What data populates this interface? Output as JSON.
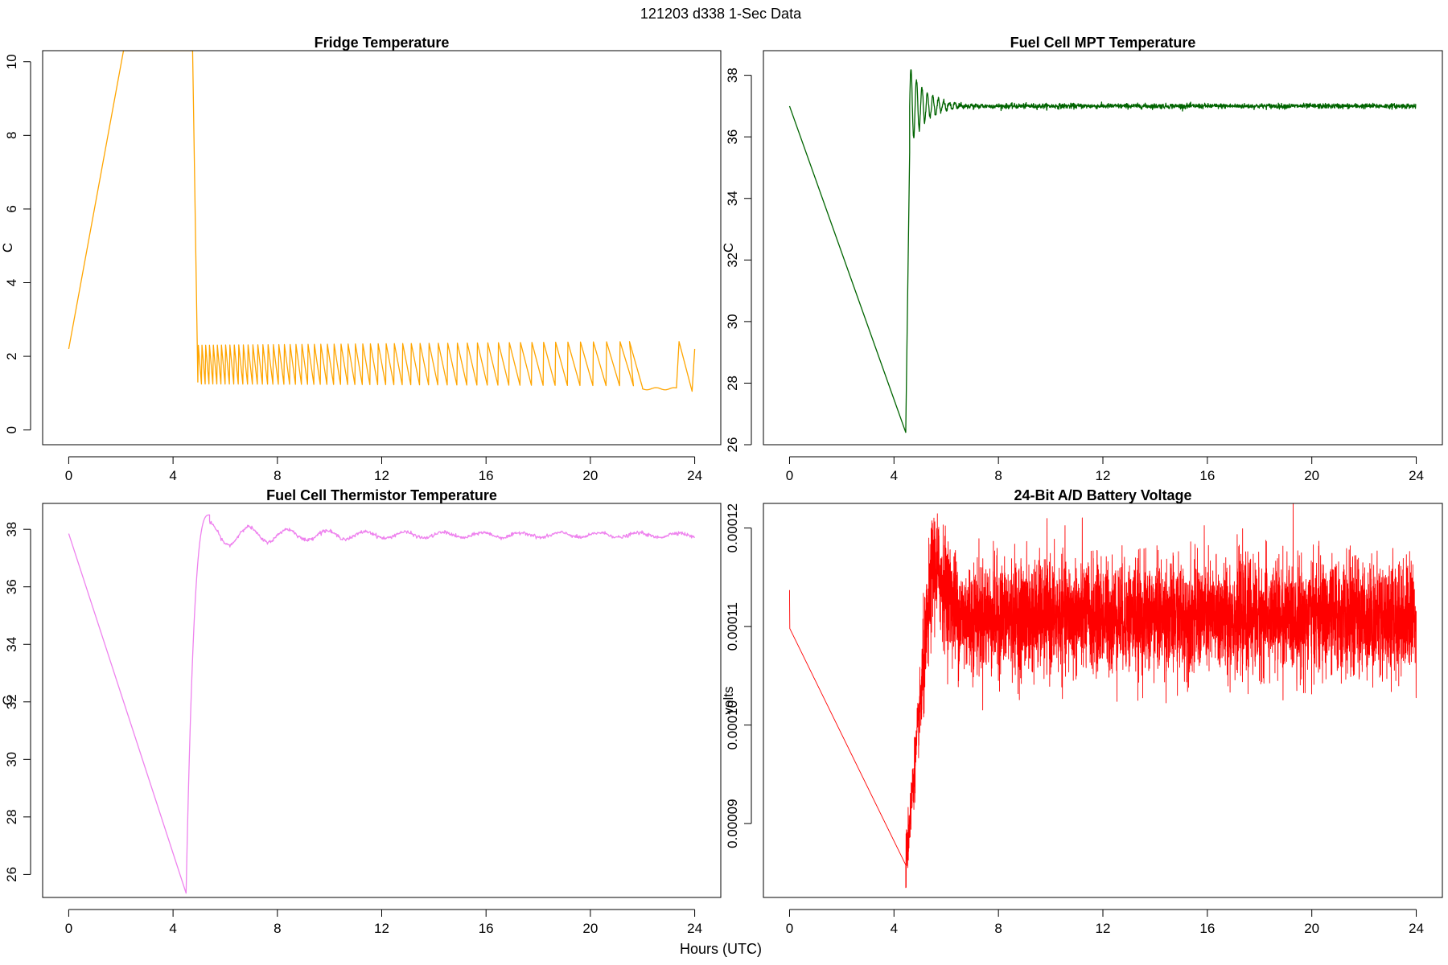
{
  "header": {
    "title": "121203   d338   1-Sec Data",
    "xlabel": "Hours (UTC)"
  },
  "chart_data": [
    {
      "type": "line",
      "title": "Fridge Temperature",
      "xlabel": "Hours (UTC)",
      "ylabel": "C",
      "color": "#FFA500",
      "xlim": [
        -1,
        25
      ],
      "ylim": [
        -0.4,
        10.3
      ],
      "xticks": [
        0,
        4,
        8,
        12,
        16,
        20,
        24
      ],
      "yticks": [
        0,
        2,
        4,
        6,
        8,
        10
      ],
      "ytick_labels": [
        "0",
        "2",
        "4",
        "6",
        "8",
        "10"
      ],
      "series": [
        {
          "name": "Fridge Temperature",
          "x": [
            0,
            2.1,
            4.75,
            4.95,
            5.0,
            21.5,
            22.0,
            23.4,
            23.45,
            23.9,
            24.0
          ],
          "y": [
            2.2,
            10.3,
            10.3,
            1.3,
            2.3,
            2.4,
            1.1,
            1.05,
            2.4,
            1.05,
            2.2
          ]
        }
      ],
      "notes": "sawtooth cycling between ~1.2 and ~2.3 C from hour 5 to 21.5, period lengthening"
    },
    {
      "type": "line",
      "title": "Fuel Cell MPT Temperature",
      "xlabel": "Hours (UTC)",
      "ylabel": "C",
      "color": "#006400",
      "xlim": [
        -1,
        25
      ],
      "ylim": [
        26,
        38.8
      ],
      "xticks": [
        0,
        4,
        8,
        12,
        16,
        20,
        24
      ],
      "yticks": [
        26,
        28,
        30,
        32,
        34,
        36,
        38
      ],
      "ytick_labels": [
        "26",
        "28",
        "30",
        "32",
        "34",
        "36",
        "38"
      ],
      "series": [
        {
          "name": "Fuel Cell MPT Temperature",
          "x": [
            0,
            4.45,
            4.65,
            4.7,
            5.0,
            5.5,
            6.0,
            6.5,
            24.0
          ],
          "y": [
            37.0,
            26.4,
            36.0,
            38.3,
            36.8,
            37.3,
            36.9,
            37.0,
            37.0
          ]
        }
      ]
    },
    {
      "type": "line",
      "title": "Fuel Cell Thermistor Temperature",
      "xlabel": "Hours (UTC)",
      "ylabel": "C",
      "color": "#EE82EE",
      "xlim": [
        -1,
        25
      ],
      "ylim": [
        25.2,
        38.9
      ],
      "xticks": [
        0,
        4,
        8,
        12,
        16,
        20,
        24
      ],
      "yticks": [
        26,
        28,
        30,
        32,
        34,
        36,
        38
      ],
      "ytick_labels": [
        "26",
        "28",
        "30",
        "32",
        "34",
        "36",
        "38"
      ],
      "series": [
        {
          "name": "Fuel Cell Thermistor Temperature",
          "x": [
            0,
            4.5,
            5.0,
            5.4,
            6.0,
            7.0,
            8.0,
            10.0,
            24.0
          ],
          "y": [
            37.85,
            25.35,
            37.5,
            38.5,
            37.7,
            37.95,
            37.75,
            37.9,
            37.85
          ]
        },
        "oscillation: damped wave around 37.8 C, amplitude ~0.1, period ~1.5 h"
      ]
    },
    {
      "type": "line",
      "title": "24-Bit A/D Battery Voltage",
      "xlabel": "Hours (UTC)",
      "ylabel": "volts",
      "color": "#FF0000",
      "xlim": [
        -1,
        25
      ],
      "ylim": [
        8.25e-05,
        0.0001225
      ],
      "xticks": [
        0,
        4,
        8,
        12,
        16,
        20,
        24
      ],
      "yticks": [
        9e-05,
        0.0001,
        0.00011,
        0.00012
      ],
      "ytick_labels": [
        "0.00009",
        "0.00010",
        "0.00011",
        "0.00012"
      ],
      "series": [
        {
          "name": "24-Bit A/D Battery Voltage",
          "x": [
            0,
            0.02,
            4.5,
            5.5,
            6.5,
            24.0
          ],
          "y": [
            0.0001137,
            0.0001098,
            8.58e-05,
            0.0001195,
            0.000111,
            0.000111
          ]
        }
      ],
      "notes": "noisy signal around 0.000111 V with band roughly +/-0.000004 after hour 6"
    }
  ]
}
